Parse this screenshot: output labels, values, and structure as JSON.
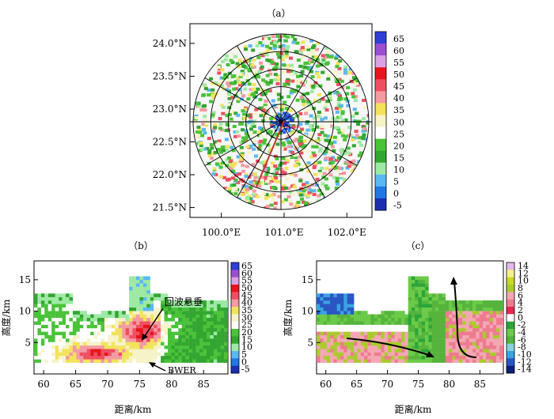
{
  "chart_data": [
    {
      "panel_label": "（a）",
      "type": "heatmap",
      "subtype": "polar radar reflectivity map",
      "ylabels": [
        "24.0°N",
        "23.5°N",
        "23.0°N",
        "22.5°N",
        "22.0°N",
        "21.5°N"
      ],
      "yticks": [
        24.0,
        23.5,
        23.0,
        22.5,
        22.0,
        21.5
      ],
      "xlabels": [
        "100.0°E",
        "101.0°E",
        "102.0°E"
      ],
      "xticks": [
        100.0,
        101.0,
        102.0
      ],
      "xlim": [
        99.5,
        102.4
      ],
      "ylim": [
        21.35,
        24.3
      ],
      "colorbar": {
        "labels": [
          "65",
          "60",
          "55",
          "50",
          "45",
          "40",
          "35",
          "30",
          "25",
          "20",
          "15",
          "10",
          "5",
          "0",
          "-5"
        ],
        "colors": [
          "#2f3fd8",
          "#9a4fd0",
          "#d9a2e3",
          "#e8141c",
          "#ee4f62",
          "#f39aa3",
          "#f2e35b",
          "#f6f3c7",
          "#ffffff",
          "#49c339",
          "#33a531",
          "#9ee9a4",
          "#5bb8f2",
          "#2277e4",
          "#1b2fae"
        ]
      },
      "rings_km": [
        30,
        60,
        90,
        120,
        150
      ],
      "cross_section_line": [
        [
          100.55,
          21.8
        ],
        [
          101.0,
          22.82
        ]
      ]
    },
    {
      "panel_label": "（b）",
      "type": "heatmap",
      "subtype": "reflectivity vertical cross-section",
      "ylabel": "高度/km",
      "xlabel": "距离/km",
      "xticks": [
        60,
        65,
        70,
        75,
        80,
        85
      ],
      "yticks": [
        5,
        10,
        15
      ],
      "xlim": [
        58.5,
        88.8
      ],
      "ylim": [
        0,
        18
      ],
      "annotations": [
        "回波悬垂",
        "BWER"
      ],
      "colorbar": {
        "labels": [
          "65",
          "60",
          "55",
          "50",
          "45",
          "40",
          "35",
          "30",
          "25",
          "20",
          "15",
          "10",
          "5",
          "0",
          "-5"
        ],
        "colors": [
          "#2f3fd8",
          "#9a4fd0",
          "#d9a2e3",
          "#e8141c",
          "#ee4f62",
          "#f39aa3",
          "#f2e35b",
          "#f6f3c7",
          "#ffffff",
          "#49c339",
          "#33a531",
          "#9ee9a4",
          "#5bb8f2",
          "#2277e4",
          "#1b2fae"
        ]
      }
    },
    {
      "panel_label": "（c）",
      "type": "heatmap",
      "subtype": "radial velocity vertical cross-section",
      "ylabel": "高度/km",
      "xlabel": "距离/km",
      "xticks": [
        60,
        65,
        70,
        75,
        80,
        85
      ],
      "yticks": [
        5,
        10,
        15
      ],
      "xlim": [
        58.5,
        88.8
      ],
      "ylim": [
        0,
        18
      ],
      "colorbar": {
        "labels": [
          "14",
          "12",
          "10",
          "8",
          "6",
          "4",
          "2",
          "0",
          "-2",
          "-4",
          "-6",
          "-8",
          "-10",
          "-12",
          "-14"
        ],
        "colors": [
          "#e4b9e8",
          "#f4f08e",
          "#c9d82a",
          "#aacb2c",
          "#f3a7b3",
          "#ee7b8f",
          "#e2294f",
          "#ffffff",
          "#2aa539",
          "#6bcb48",
          "#56b43d",
          "#86d3d9",
          "#3aa3e0",
          "#2a56c4",
          "#0e1f7a"
        ]
      }
    }
  ]
}
